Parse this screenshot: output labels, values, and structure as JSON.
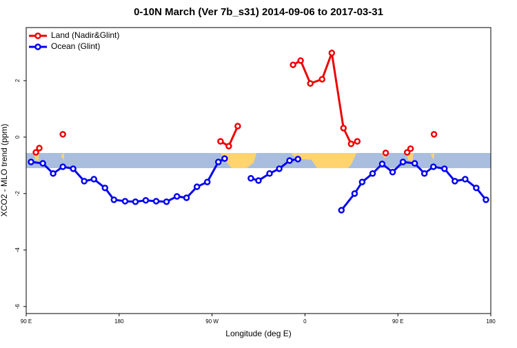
{
  "chart_data": {
    "type": "line",
    "title": "0-10N March (Ver 7b_s31)   2014-09-06 to 2017-03-31",
    "x_label": "Longitude (deg E)",
    "y_label": "XCO2 - MLO trend (ppm)",
    "xlim": [
      90,
      540
    ],
    "ylim": [
      -6.25,
      3.88
    ],
    "xticks": [
      {
        "value": 90,
        "label": "90 E"
      },
      {
        "value": 180,
        "label": "180"
      },
      {
        "value": 270,
        "label": "90 W"
      },
      {
        "value": 360,
        "label": "0"
      },
      {
        "value": 450,
        "label": "90 E"
      },
      {
        "value": 540,
        "label": "180"
      }
    ],
    "yticks": [
      -6,
      -4,
      -2,
      0,
      2
    ],
    "legend_position": "top-left",
    "series": [
      {
        "name": "Land (Nadir&Glint)",
        "color": "#ee0000",
        "x": [
          99.4,
          102.7,
          null,
          125.5,
          null,
          278.2,
          286.2,
          294.9,
          null,
          348.5,
          355.8,
          365.2,
          376.6,
          386,
          397.3,
          404.7,
          410.7,
          null,
          438.2,
          null,
          459,
          462.3,
          null,
          485
        ],
        "values": [
          -0.54,
          -0.39,
          null,
          0.1,
          null,
          -0.15,
          -0.32,
          0.39,
          null,
          2.56,
          2.71,
          1.9,
          2.05,
          2.98,
          0.32,
          -0.24,
          -0.15,
          null,
          -0.56,
          null,
          -0.54,
          -0.41,
          null,
          0.1
        ]
      },
      {
        "name": "Ocean (Glint)",
        "color": "#0000ee",
        "x": [
          94.7,
          106.1,
          116.1,
          125.5,
          135.5,
          146.2,
          155.6,
          166.3,
          175,
          185.8,
          195.8,
          205.8,
          215.9,
          225.9,
          236,
          245.3,
          255.4,
          265.4,
          276.1,
          282.2,
          null,
          307.6,
          315,
          325.7,
          335.1,
          345.1,
          353.2,
          null,
          395.3,
          408.1,
          415.4,
          425.5,
          434.8,
          444.9,
          454.9,
          466.3,
          475.7,
          484.4,
          495.1,
          505.2,
          515.2,
          525.9,
          535.3
        ],
        "values": [
          -0.88,
          -0.93,
          -1.29,
          -1.05,
          -1.12,
          -1.56,
          -1.49,
          -1.8,
          -2.22,
          -2.27,
          -2.29,
          -2.24,
          -2.27,
          -2.29,
          -2.1,
          -2.15,
          -1.76,
          -1.59,
          -0.88,
          -0.76,
          null,
          -1.46,
          -1.54,
          -1.29,
          -1.12,
          -0.83,
          -0.78,
          null,
          -2.59,
          -2.0,
          -1.59,
          -1.29,
          -0.95,
          -1.24,
          -0.88,
          -0.93,
          -1.29,
          -1.05,
          -1.12,
          -1.56,
          -1.49,
          -1.8,
          -2.22
        ]
      }
    ]
  }
}
